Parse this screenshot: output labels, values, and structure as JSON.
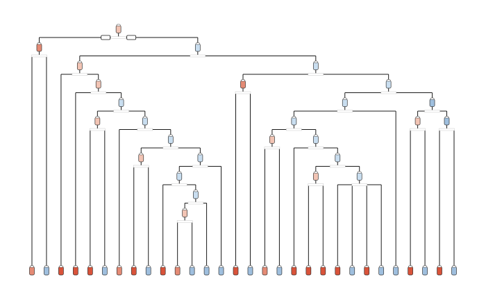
{
  "diagram": {
    "type": "decision-tree",
    "colors": {
      "edge": "#1a1a1a",
      "node_stroke": "#333333",
      "label_bg": "#ffffff",
      "palette": {
        "red_strong": "#d9533a",
        "red_medium": "#e58b75",
        "red_light": "#f2c4b4",
        "blue_light": "#c9def0",
        "blue_medium": "#9fbfde",
        "blue_strong": "#7ea4c8"
      }
    },
    "root": {
      "class": "red_light",
      "children": [
        {
          "class": "red_medium",
          "children": [
            {
              "class": "red_medium"
            },
            {
              "class": "blue_medium"
            }
          ]
        },
        {
          "class": "blue_light",
          "children": [
            {
              "class": "red_light",
              "children": [
                {
                  "class": "red_strong"
                },
                {
                  "class": "red_light",
                  "children": [
                    {
                      "class": "red_strong"
                    },
                    {
                      "class": "blue_light",
                      "children": [
                        {
                          "class": "red_light",
                          "children": [
                            {
                              "class": "red_strong"
                            },
                            {
                              "class": "blue_medium"
                            }
                          ]
                        },
                        {
                          "class": "blue_light",
                          "children": [
                            {
                              "class": "red_medium"
                            },
                            {
                              "class": "blue_light",
                              "children": [
                                {
                                  "class": "red_light",
                                  "children": [
                                    {
                                      "class": "red_strong"
                                    },
                                    {
                                      "class": "blue_medium"
                                    }
                                  ]
                                },
                                {
                                  "class": "blue_light",
                                  "children": [
                                    {
                                      "class": "blue_light",
                                      "children": [
                                        {
                                          "class": "red_strong"
                                        },
                                        {
                                          "class": "blue_light",
                                          "children": [
                                            {
                                              "class": "red_light",
                                              "children": [
                                                {
                                                  "class": "red_medium"
                                                },
                                                {
                                                  "class": "blue_medium"
                                                }
                                              ]
                                            },
                                            {
                                              "class": "blue_medium"
                                            }
                                          ]
                                        }
                                      ]
                                    },
                                    {
                                      "class": "blue_medium"
                                    }
                                  ]
                                }
                              ]
                            }
                          ]
                        }
                      ]
                    }
                  ]
                }
              ]
            },
            {
              "class": "blue_light",
              "children": [
                {
                  "class": "red_medium",
                  "children": [
                    {
                      "class": "red_strong"
                    },
                    {
                      "class": "blue_medium"
                    }
                  ]
                },
                {
                  "class": "blue_light",
                  "children": [
                    {
                      "class": "blue_light",
                      "children": [
                        {
                          "class": "blue_light",
                          "children": [
                            {
                              "class": "red_light",
                              "children": [
                                {
                                  "class": "red_medium"
                                },
                                {
                                  "class": "blue_medium"
                                }
                              ]
                            },
                            {
                              "class": "blue_light",
                              "children": [
                                {
                                  "class": "red_strong"
                                },
                                {
                                  "class": "blue_light",
                                  "children": [
                                    {
                                      "class": "red_light",
                                      "children": [
                                        {
                                          "class": "red_strong"
                                        },
                                        {
                                          "class": "red_strong"
                                        }
                                      ]
                                    },
                                    {
                                      "class": "blue_light",
                                      "children": [
                                        {
                                          "class": "red_strong"
                                        },
                                        {
                                          "class": "blue_medium"
                                        },
                                        {
                                          "class": "red_strong"
                                        },
                                        {
                                          "class": "blue_medium"
                                        }
                                      ]
                                    }
                                  ]
                                }
                              ]
                            }
                          ]
                        },
                        {
                          "class": "blue_medium"
                        }
                      ]
                    },
                    {
                      "class": "blue_medium",
                      "children": [
                        {
                          "class": "red_light",
                          "children": [
                            {
                              "class": "red_strong"
                            },
                            {
                              "class": "blue_medium"
                            }
                          ]
                        },
                        {
                          "class": "blue_medium",
                          "children": [
                            {
                              "class": "red_strong"
                            },
                            {
                              "class": "blue_medium"
                            }
                          ]
                        }
                      ]
                    }
                  ]
                }
              ]
            }
          ]
        }
      ]
    }
  }
}
